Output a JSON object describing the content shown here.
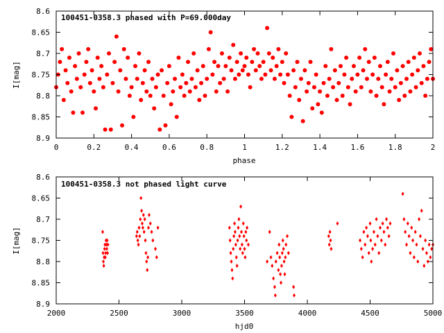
{
  "chart_data": [
    {
      "type": "scatter",
      "title": "100451-0358.3 phased with P=69.000day",
      "xlabel": "phase",
      "ylabel": "I[mag]",
      "xlim": [
        0,
        2
      ],
      "ylim": [
        8.9,
        8.6
      ],
      "y_inverted": true,
      "x_ticks": [
        "0",
        "0.2",
        "0.4",
        "0.6",
        "0.8",
        "1",
        "1.2",
        "1.4",
        "1.6",
        "1.8",
        "2"
      ],
      "y_ticks": [
        "8.6",
        "8.65",
        "8.7",
        "8.75",
        "8.8",
        "8.85",
        "8.9"
      ],
      "marker": "filled-circle",
      "color": "#ff0000",
      "points": [
        [
          0.0,
          8.78
        ],
        [
          0.01,
          8.75
        ],
        [
          0.02,
          8.72
        ],
        [
          0.03,
          8.69
        ],
        [
          0.04,
          8.81
        ],
        [
          0.05,
          8.74
        ],
        [
          0.06,
          8.77
        ],
        [
          0.07,
          8.71
        ],
        [
          0.08,
          8.79
        ],
        [
          0.09,
          8.84
        ],
        [
          0.1,
          8.73
        ],
        [
          0.11,
          8.76
        ],
        [
          0.12,
          8.7
        ],
        [
          0.13,
          8.78
        ],
        [
          0.14,
          8.84
        ],
        [
          0.15,
          8.75
        ],
        [
          0.16,
          8.72
        ],
        [
          0.17,
          8.69
        ],
        [
          0.18,
          8.77
        ],
        [
          0.19,
          8.74
        ],
        [
          0.2,
          8.79
        ],
        [
          0.21,
          8.83
        ],
        [
          0.22,
          8.71
        ],
        [
          0.23,
          8.76
        ],
        [
          0.24,
          8.73
        ],
        [
          0.25,
          8.78
        ],
        [
          0.26,
          8.88
        ],
        [
          0.27,
          8.75
        ],
        [
          0.28,
          8.7
        ],
        [
          0.29,
          8.88
        ],
        [
          0.3,
          8.77
        ],
        [
          0.31,
          8.72
        ],
        [
          0.32,
          8.66
        ],
        [
          0.33,
          8.79
        ],
        [
          0.34,
          8.74
        ],
        [
          0.35,
          8.87
        ],
        [
          0.36,
          8.69
        ],
        [
          0.37,
          8.76
        ],
        [
          0.38,
          8.71
        ],
        [
          0.39,
          8.8
        ],
        [
          0.4,
          8.78
        ],
        [
          0.41,
          8.85
        ],
        [
          0.42,
          8.73
        ],
        [
          0.43,
          8.76
        ],
        [
          0.44,
          8.7
        ],
        [
          0.45,
          8.81
        ],
        [
          0.46,
          8.77
        ],
        [
          0.47,
          8.74
        ],
        [
          0.48,
          8.79
        ],
        [
          0.49,
          8.72
        ],
        [
          0.5,
          8.8
        ],
        [
          0.51,
          8.76
        ],
        [
          0.52,
          8.83
        ],
        [
          0.53,
          8.78
        ],
        [
          0.54,
          8.75
        ],
        [
          0.55,
          8.88
        ],
        [
          0.56,
          8.74
        ],
        [
          0.57,
          8.8
        ],
        [
          0.58,
          8.87
        ],
        [
          0.59,
          8.77
        ],
        [
          0.6,
          8.73
        ],
        [
          0.61,
          8.82
        ],
        [
          0.62,
          8.79
        ],
        [
          0.63,
          8.76
        ],
        [
          0.64,
          8.85
        ],
        [
          0.65,
          8.71
        ],
        [
          0.66,
          8.78
        ],
        [
          0.67,
          8.75
        ],
        [
          0.68,
          8.8
        ],
        [
          0.69,
          8.77
        ],
        [
          0.7,
          8.72
        ],
        [
          0.71,
          8.79
        ],
        [
          0.72,
          8.76
        ],
        [
          0.73,
          8.7
        ],
        [
          0.74,
          8.78
        ],
        [
          0.75,
          8.74
        ],
        [
          0.76,
          8.81
        ],
        [
          0.77,
          8.77
        ],
        [
          0.78,
          8.73
        ],
        [
          0.79,
          8.8
        ],
        [
          0.8,
          8.76
        ],
        [
          0.81,
          8.69
        ],
        [
          0.82,
          8.65
        ],
        [
          0.83,
          8.75
        ],
        [
          0.84,
          8.72
        ],
        [
          0.85,
          8.79
        ],
        [
          0.86,
          8.73
        ],
        [
          0.87,
          8.77
        ],
        [
          0.88,
          8.7
        ],
        [
          0.89,
          8.76
        ],
        [
          0.9,
          8.73
        ],
        [
          0.91,
          8.79
        ],
        [
          0.92,
          8.71
        ],
        [
          0.93,
          8.74
        ],
        [
          0.94,
          8.68
        ],
        [
          0.95,
          8.76
        ],
        [
          0.96,
          8.72
        ],
        [
          0.97,
          8.75
        ],
        [
          0.98,
          8.7
        ],
        [
          0.99,
          8.74
        ],
        [
          1.0,
          8.73
        ],
        [
          1.01,
          8.71
        ],
        [
          1.02,
          8.75
        ],
        [
          1.03,
          8.78
        ],
        [
          1.04,
          8.72
        ],
        [
          1.05,
          8.69
        ],
        [
          1.06,
          8.74
        ],
        [
          1.07,
          8.7
        ],
        [
          1.08,
          8.73
        ],
        [
          1.09,
          8.76
        ],
        [
          1.1,
          8.72
        ],
        [
          1.11,
          8.75
        ],
        [
          1.12,
          8.64
        ],
        [
          1.13,
          8.7
        ],
        [
          1.14,
          8.74
        ],
        [
          1.15,
          8.71
        ],
        [
          1.16,
          8.76
        ],
        [
          1.17,
          8.73
        ],
        [
          1.18,
          8.69
        ],
        [
          1.19,
          8.75
        ],
        [
          1.2,
          8.72
        ],
        [
          1.21,
          8.77
        ],
        [
          1.22,
          8.7
        ],
        [
          1.23,
          8.75
        ],
        [
          1.24,
          8.8
        ],
        [
          1.25,
          8.85
        ],
        [
          1.26,
          8.74
        ],
        [
          1.27,
          8.78
        ],
        [
          1.28,
          8.72
        ],
        [
          1.29,
          8.81
        ],
        [
          1.3,
          8.76
        ],
        [
          1.31,
          8.86
        ],
        [
          1.32,
          8.74
        ],
        [
          1.33,
          8.79
        ],
        [
          1.34,
          8.77
        ],
        [
          1.35,
          8.72
        ],
        [
          1.36,
          8.83
        ],
        [
          1.37,
          8.78
        ],
        [
          1.38,
          8.75
        ],
        [
          1.39,
          8.82
        ],
        [
          1.4,
          8.79
        ],
        [
          1.41,
          8.84
        ],
        [
          1.42,
          8.77
        ],
        [
          1.43,
          8.73
        ],
        [
          1.44,
          8.8
        ],
        [
          1.45,
          8.76
        ],
        [
          1.46,
          8.69
        ],
        [
          1.47,
          8.78
        ],
        [
          1.48,
          8.74
        ],
        [
          1.49,
          8.81
        ],
        [
          1.5,
          8.77
        ],
        [
          1.51,
          8.73
        ],
        [
          1.52,
          8.8
        ],
        [
          1.53,
          8.75
        ],
        [
          1.54,
          8.71
        ],
        [
          1.55,
          8.78
        ],
        [
          1.56,
          8.82
        ],
        [
          1.57,
          8.76
        ],
        [
          1.58,
          8.73
        ],
        [
          1.59,
          8.79
        ],
        [
          1.6,
          8.75
        ],
        [
          1.61,
          8.71
        ],
        [
          1.62,
          8.78
        ],
        [
          1.63,
          8.74
        ],
        [
          1.64,
          8.69
        ],
        [
          1.65,
          8.76
        ],
        [
          1.66,
          8.72
        ],
        [
          1.67,
          8.79
        ],
        [
          1.68,
          8.75
        ],
        [
          1.69,
          8.71
        ],
        [
          1.7,
          8.8
        ],
        [
          1.71,
          8.76
        ],
        [
          1.72,
          8.73
        ],
        [
          1.73,
          8.78
        ],
        [
          1.74,
          8.82
        ],
        [
          1.75,
          8.75
        ],
        [
          1.76,
          8.72
        ],
        [
          1.77,
          8.79
        ],
        [
          1.78,
          8.76
        ],
        [
          1.79,
          8.7
        ],
        [
          1.8,
          8.78
        ],
        [
          1.81,
          8.74
        ],
        [
          1.82,
          8.81
        ],
        [
          1.83,
          8.77
        ],
        [
          1.84,
          8.73
        ],
        [
          1.85,
          8.8
        ],
        [
          1.86,
          8.76
        ],
        [
          1.87,
          8.72
        ],
        [
          1.88,
          8.79
        ],
        [
          1.89,
          8.75
        ],
        [
          1.9,
          8.71
        ],
        [
          1.91,
          8.78
        ],
        [
          1.92,
          8.74
        ],
        [
          1.93,
          8.7
        ],
        [
          1.94,
          8.77
        ],
        [
          1.95,
          8.73
        ],
        [
          1.96,
          8.8
        ],
        [
          1.97,
          8.76
        ],
        [
          1.98,
          8.72
        ],
        [
          1.99,
          8.69
        ],
        [
          2.0,
          8.76
        ]
      ]
    },
    {
      "type": "scatter",
      "title": "100451-0358.3 not phased light curve",
      "xlabel": "hjd0",
      "ylabel": "I[mag]",
      "xlim": [
        2000,
        5000
      ],
      "ylim": [
        8.9,
        8.6
      ],
      "y_inverted": true,
      "x_ticks": [
        "2000",
        "2500",
        "3000",
        "3500",
        "4000",
        "4500",
        "5000"
      ],
      "y_ticks": [
        "8.6",
        "8.65",
        "8.7",
        "8.75",
        "8.8",
        "8.85",
        "8.9"
      ],
      "marker": "small-diamond",
      "color": "#ff0000",
      "points": [
        [
          2370,
          8.73
        ],
        [
          2373,
          8.78
        ],
        [
          2376,
          8.8
        ],
        [
          2379,
          8.81
        ],
        [
          2382,
          8.79
        ],
        [
          2385,
          8.77
        ],
        [
          2388,
          8.76
        ],
        [
          2391,
          8.79
        ],
        [
          2394,
          8.78
        ],
        [
          2397,
          8.75
        ],
        [
          2400,
          8.76
        ],
        [
          2403,
          8.77
        ],
        [
          2406,
          8.75
        ],
        [
          2409,
          8.78
        ],
        [
          2412,
          8.76
        ],
        [
          2640,
          8.74
        ],
        [
          2645,
          8.73
        ],
        [
          2650,
          8.75
        ],
        [
          2655,
          8.76
        ],
        [
          2660,
          8.72
        ],
        [
          2665,
          8.74
        ],
        [
          2670,
          8.7
        ],
        [
          2675,
          8.65
        ],
        [
          2680,
          8.68
        ],
        [
          2685,
          8.71
        ],
        [
          2690,
          8.72
        ],
        [
          2695,
          8.69
        ],
        [
          2700,
          8.73
        ],
        [
          2705,
          8.7
        ],
        [
          2710,
          8.75
        ],
        [
          2715,
          8.78
        ],
        [
          2720,
          8.8
        ],
        [
          2725,
          8.82
        ],
        [
          2730,
          8.79
        ],
        [
          2735,
          8.72
        ],
        [
          2740,
          8.69
        ],
        [
          2750,
          8.71
        ],
        [
          2760,
          8.73
        ],
        [
          2770,
          8.75
        ],
        [
          2790,
          8.77
        ],
        [
          2800,
          8.79
        ],
        [
          2810,
          8.72
        ],
        [
          3380,
          8.72
        ],
        [
          3385,
          8.75
        ],
        [
          3390,
          8.78
        ],
        [
          3395,
          8.8
        ],
        [
          3400,
          8.82
        ],
        [
          3405,
          8.84
        ],
        [
          3410,
          8.77
        ],
        [
          3415,
          8.74
        ],
        [
          3420,
          8.71
        ],
        [
          3425,
          8.73
        ],
        [
          3430,
          8.76
        ],
        [
          3435,
          8.79
        ],
        [
          3440,
          8.81
        ],
        [
          3445,
          8.75
        ],
        [
          3450,
          8.72
        ],
        [
          3455,
          8.7
        ],
        [
          3460,
          8.74
        ],
        [
          3465,
          8.77
        ],
        [
          3470,
          8.67
        ],
        [
          3475,
          8.73
        ],
        [
          3480,
          8.76
        ],
        [
          3485,
          8.78
        ],
        [
          3490,
          8.71
        ],
        [
          3495,
          8.74
        ],
        [
          3500,
          8.77
        ],
        [
          3505,
          8.79
        ],
        [
          3510,
          8.73
        ],
        [
          3515,
          8.75
        ],
        [
          3520,
          8.72
        ],
        [
          3530,
          8.76
        ],
        [
          3680,
          8.8
        ],
        [
          3700,
          8.73
        ],
        [
          3710,
          8.79
        ],
        [
          3720,
          8.81
        ],
        [
          3730,
          8.84
        ],
        [
          3740,
          8.86
        ],
        [
          3745,
          8.88
        ],
        [
          3750,
          8.8
        ],
        [
          3760,
          8.78
        ],
        [
          3770,
          8.82
        ],
        [
          3775,
          8.76
        ],
        [
          3780,
          8.79
        ],
        [
          3785,
          8.83
        ],
        [
          3790,
          8.85
        ],
        [
          3795,
          8.81
        ],
        [
          3800,
          8.78
        ],
        [
          3805,
          8.75
        ],
        [
          3810,
          8.77
        ],
        [
          3815,
          8.8
        ],
        [
          3820,
          8.83
        ],
        [
          3825,
          8.79
        ],
        [
          3830,
          8.76
        ],
        [
          3840,
          8.74
        ],
        [
          3850,
          8.78
        ],
        [
          3890,
          8.86
        ],
        [
          3895,
          8.88
        ],
        [
          4170,
          8.74
        ],
        [
          4175,
          8.76
        ],
        [
          4180,
          8.73
        ],
        [
          4185,
          8.75
        ],
        [
          4190,
          8.77
        ],
        [
          4240,
          8.71
        ],
        [
          4420,
          8.75
        ],
        [
          4430,
          8.77
        ],
        [
          4440,
          8.79
        ],
        [
          4450,
          8.73
        ],
        [
          4460,
          8.76
        ],
        [
          4470,
          8.72
        ],
        [
          4480,
          8.74
        ],
        [
          4490,
          8.78
        ],
        [
          4500,
          8.71
        ],
        [
          4505,
          8.75
        ],
        [
          4510,
          8.8
        ],
        [
          4520,
          8.77
        ],
        [
          4530,
          8.73
        ],
        [
          4540,
          8.76
        ],
        [
          4550,
          8.7
        ],
        [
          4560,
          8.74
        ],
        [
          4570,
          8.78
        ],
        [
          4580,
          8.72
        ],
        [
          4590,
          8.75
        ],
        [
          4600,
          8.71
        ],
        [
          4610,
          8.73
        ],
        [
          4620,
          8.76
        ],
        [
          4630,
          8.7
        ],
        [
          4640,
          8.72
        ],
        [
          4650,
          8.74
        ],
        [
          4660,
          8.71
        ],
        [
          4760,
          8.64
        ],
        [
          4770,
          8.7
        ],
        [
          4780,
          8.73
        ],
        [
          4790,
          8.76
        ],
        [
          4800,
          8.71
        ],
        [
          4810,
          8.74
        ],
        [
          4820,
          8.78
        ],
        [
          4830,
          8.72
        ],
        [
          4840,
          8.75
        ],
        [
          4850,
          8.79
        ],
        [
          4860,
          8.73
        ],
        [
          4870,
          8.76
        ],
        [
          4880,
          8.8
        ],
        [
          4890,
          8.7
        ],
        [
          4900,
          8.74
        ],
        [
          4910,
          8.68
        ],
        [
          4920,
          8.77
        ],
        [
          4930,
          8.81
        ],
        [
          4940,
          8.75
        ],
        [
          4950,
          8.78
        ],
        [
          4960,
          8.8
        ],
        [
          4970,
          8.76
        ],
        [
          4980,
          8.79
        ],
        [
          4990,
          8.77
        ],
        [
          5000,
          8.76
        ]
      ]
    }
  ]
}
